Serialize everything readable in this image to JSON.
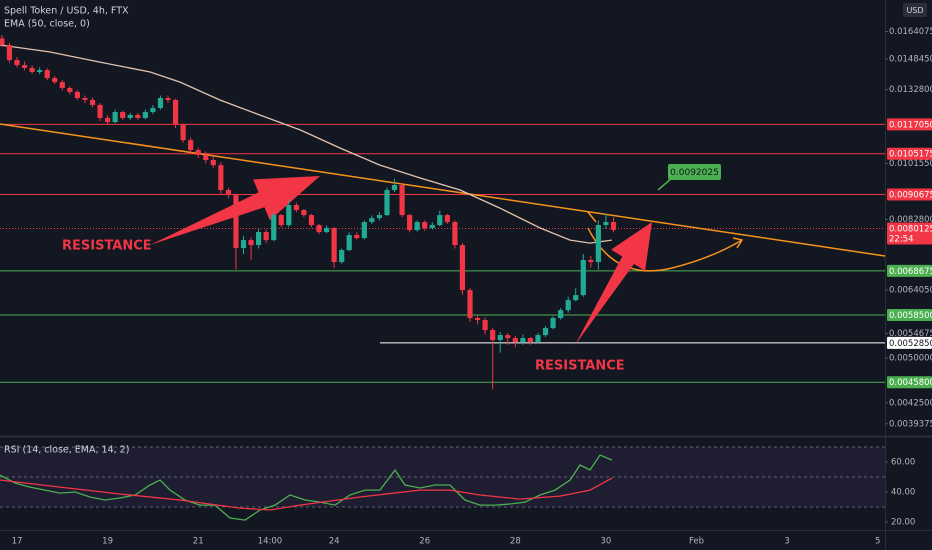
{
  "header": {
    "symbol": "Spell Token / USD, 4h, FTX",
    "ema_label": "EMA (50, close, 0)",
    "currency": "USD"
  },
  "chart_data": [
    {
      "type": "candlestick",
      "up_color": "#22ab94",
      "down_color": "#f23645",
      "log_scale": true,
      "xlim": [
        16.625,
        36.16
      ],
      "ylim": [
        0.00378,
        0.0184
      ],
      "xticks": [
        17,
        19,
        21,
        {
          "value": 22.583,
          "label": "14:00"
        },
        24,
        26,
        28,
        30,
        {
          "value": 32,
          "label": "Feb"
        },
        {
          "value": 34,
          "label": "3"
        },
        {
          "value": 36,
          "label": "5"
        }
      ],
      "yticks": [
        0.0164075,
        {
          "value": 0.014845,
          "label": "0.0148450"
        },
        {
          "value": 0.01328,
          "label": "0.0132800"
        },
        {
          "value": 0.010155,
          "label": "0.0101550"
        },
        {
          "value": 0.00828,
          "label": "0.0082800"
        },
        {
          "value": 0.006405,
          "label": "0.0064050"
        },
        0.0054675,
        {
          "value": 0.005,
          "label": "0.0050000"
        },
        {
          "value": 0.00425,
          "label": "0.0042500"
        },
        0.0039375
      ],
      "levels": [
        {
          "value": 0.011705,
          "label": "0.0117050",
          "color": "#f23645"
        },
        {
          "value": 0.0105175,
          "label": "0.0105175",
          "color": "#f23645"
        },
        {
          "value": 0.0090675,
          "label": "0.0090675",
          "color": "#f23645"
        },
        {
          "value": 0.0068675,
          "label": "0.0068675",
          "color": "#4caf50"
        },
        {
          "value": 0.00585,
          "label": "0.0058500",
          "color": "#4caf50"
        },
        {
          "value": 0.005285,
          "label": "0.0052850",
          "color": "#ffffff"
        },
        {
          "value": 0.00458,
          "label": "0.0045800",
          "color": "#4caf50"
        }
      ],
      "current": {
        "value": 0.0080125,
        "label": "0.0080125",
        "countdown": "22:54",
        "color": "#f23645"
      },
      "annotations": [
        "RESISTANCE",
        "RESISTANCE"
      ],
      "callout": {
        "label": "0.0092025",
        "color": "#4caf50"
      },
      "x": [
        16.667,
        16.833,
        17,
        17.167,
        17.333,
        17.5,
        17.667,
        17.833,
        18,
        18.167,
        18.333,
        18.5,
        18.667,
        18.833,
        19,
        19.167,
        19.333,
        19.5,
        19.667,
        19.833,
        20,
        20.167,
        20.333,
        20.5,
        20.667,
        20.833,
        21,
        21.167,
        21.333,
        21.5,
        21.667,
        21.833,
        22,
        22.167,
        22.333,
        22.5,
        22.667,
        22.833,
        23,
        23.167,
        23.333,
        23.5,
        23.667,
        23.833,
        24,
        24.167,
        24.333,
        24.5,
        24.667,
        24.833,
        25,
        25.167,
        25.333,
        25.5,
        25.667,
        25.833,
        26,
        26.167,
        26.333,
        26.5,
        26.667,
        26.833,
        27,
        27.167,
        27.333,
        27.5,
        27.667,
        27.833,
        28,
        28.167,
        28.333,
        28.5,
        28.667,
        28.833,
        29,
        29.167,
        29.333,
        29.5,
        29.667,
        29.833,
        30,
        30.167
      ],
      "open": [
        0.016,
        0.01562,
        0.01479,
        0.01452,
        0.01437,
        0.01416,
        0.01426,
        0.01385,
        0.01365,
        0.01336,
        0.01317,
        0.01288,
        0.01279,
        0.01256,
        0.01198,
        0.0118,
        0.01224,
        0.01198,
        0.01211,
        0.01198,
        0.01224,
        0.01242,
        0.01288,
        0.01279,
        0.01168,
        0.01105,
        0.01066,
        0.01047,
        0.01028,
        0.01009,
        0.009217,
        0.00905,
        0.007463,
        0.007682,
        0.007544,
        0.00791,
        0.007682,
        0.008414,
        0.008114,
        0.008727,
        0.008569,
        0.008414,
        0.008114,
        0.00791,
        0.008026,
        0.007091,
        0.007408,
        0.007824,
        0.007739,
        0.008203,
        0.008322,
        0.008414,
        0.009217,
        0.009386,
        0.008414,
        0.007967,
        0.008203,
        0.008026,
        0.008114,
        0.008414,
        0.008203,
        0.007544,
        0.006405,
        0.005785,
        0.005743,
        0.005537,
        0.00534,
        0.005437,
        0.005378,
        0.005301,
        0.005378,
        0.005301,
        0.005437,
        0.005577,
        0.005785,
        0.005954,
        0.006175,
        0.006289,
        0.007145,
        0.007091,
        0.008114,
        0.008203
      ],
      "high": [
        0.0162,
        0.01575,
        0.01495,
        0.0147,
        0.0145,
        0.0144,
        0.01435,
        0.01395,
        0.01375,
        0.01345,
        0.01325,
        0.013,
        0.0129,
        0.01265,
        0.0121,
        0.01235,
        0.0123,
        0.0122,
        0.0122,
        0.01235,
        0.01255,
        0.013,
        0.013,
        0.01285,
        0.01175,
        0.01115,
        0.01075,
        0.0106,
        0.0104,
        0.0102,
        0.0093,
        0.0091,
        0.0078,
        0.00775,
        0.008,
        0.00798,
        0.0085,
        0.00845,
        0.0089,
        0.0088,
        0.0086,
        0.00845,
        0.00815,
        0.0081,
        0.00805,
        0.00745,
        0.0079,
        0.0079,
        0.00825,
        0.0084,
        0.0085,
        0.0093,
        0.0096,
        0.00945,
        0.00845,
        0.00825,
        0.00825,
        0.0082,
        0.00855,
        0.00845,
        0.00825,
        0.0076,
        0.00645,
        0.00585,
        0.0058,
        0.00558,
        0.0055,
        0.00548,
        0.00542,
        0.00545,
        0.0054,
        0.00548,
        0.00562,
        0.00582,
        0.006,
        0.00625,
        0.00645,
        0.0073,
        0.00725,
        0.00825,
        0.00845,
        0.00835
      ],
      "low": [
        0.0155,
        0.01465,
        0.0144,
        0.01425,
        0.01405,
        0.01405,
        0.01375,
        0.01355,
        0.01325,
        0.01305,
        0.0128,
        0.01265,
        0.01245,
        0.01185,
        0.0117,
        0.01175,
        0.0119,
        0.0119,
        0.0119,
        0.01192,
        0.01215,
        0.01235,
        0.01265,
        0.01155,
        0.01095,
        0.01055,
        0.01035,
        0.01015,
        0.01,
        0.0091,
        0.00895,
        0.0069,
        0.0073,
        0.00715,
        0.00745,
        0.0076,
        0.00765,
        0.00805,
        0.00805,
        0.0085,
        0.00835,
        0.00805,
        0.00785,
        0.00788,
        0.00695,
        0.00705,
        0.00738,
        0.0077,
        0.0077,
        0.00815,
        0.00825,
        0.00838,
        0.00915,
        0.00835,
        0.0079,
        0.00792,
        0.00795,
        0.00798,
        0.00808,
        0.00815,
        0.00745,
        0.0063,
        0.0057,
        0.00565,
        0.00545,
        0.00446,
        0.0051,
        0.00525,
        0.0052,
        0.00525,
        0.00525,
        0.00528,
        0.0054,
        0.00555,
        0.00575,
        0.0059,
        0.00615,
        0.00625,
        0.00695,
        0.0069,
        0.008,
        0.0079
      ],
      "close": [
        0.01562,
        0.01479,
        0.01452,
        0.01437,
        0.01416,
        0.01426,
        0.01385,
        0.01365,
        0.01336,
        0.01317,
        0.01288,
        0.01279,
        0.01256,
        0.01198,
        0.0118,
        0.01224,
        0.01198,
        0.01211,
        0.01198,
        0.01224,
        0.01242,
        0.01288,
        0.01279,
        0.01168,
        0.01105,
        0.01066,
        0.01047,
        0.01028,
        0.01009,
        0.009217,
        0.00905,
        0.007463,
        0.007682,
        0.007544,
        0.00791,
        0.007682,
        0.008414,
        0.008114,
        0.008727,
        0.008569,
        0.008414,
        0.008114,
        0.00791,
        0.008026,
        0.007091,
        0.007408,
        0.007824,
        0.007739,
        0.008203,
        0.008322,
        0.008414,
        0.009217,
        0.009386,
        0.008414,
        0.007967,
        0.008203,
        0.008026,
        0.008114,
        0.008414,
        0.008203,
        0.007544,
        0.006405,
        0.005785,
        0.005743,
        0.005537,
        0.00534,
        0.005437,
        0.005378,
        0.005301,
        0.005378,
        0.005301,
        0.005437,
        0.005577,
        0.005785,
        0.005954,
        0.006175,
        0.006289,
        0.007145,
        0.007091,
        0.008114,
        0.008203,
        0.007967
      ],
      "ema": {
        "color": "#e0c3b0",
        "x": [
          16.625,
          17.73,
          18.83,
          19.94,
          20.6,
          21.48,
          22.36,
          23.25,
          24.13,
          25.01,
          25.9,
          26.78,
          27.66,
          28.55,
          29.21,
          29.65,
          30.13
        ],
        "values": [
          0.01562,
          0.01523,
          0.01468,
          0.01416,
          0.01365,
          0.01279,
          0.01211,
          0.01147,
          0.01074,
          0.01009,
          0.009627,
          0.009217,
          0.008631,
          0.008026,
          0.007682,
          0.007599,
          0.007682
        ]
      }
    },
    {
      "type": "line",
      "title": "RSI (14, close, EMA, 14, 2)",
      "xlim": [
        16.625,
        36.16
      ],
      "ylim": [
        14.67,
        76
      ],
      "yticks": [
        {
          "value": 60,
          "label": "60.00"
        },
        {
          "value": 40,
          "label": "40.00"
        },
        {
          "value": 20,
          "label": "20.00"
        }
      ],
      "levels": [
        70,
        50,
        30
      ],
      "series": [
        {
          "color": "#4caf50",
          "x": [
            16.625,
            16.956,
            17.287,
            17.618,
            17.949,
            18.28,
            18.611,
            18.943,
            19.274,
            19.605,
            19.936,
            20.157,
            20.377,
            20.709,
            21.04,
            21.371,
            21.702,
            22.033,
            22.364,
            22.695,
            23.026,
            23.358,
            23.689,
            24.02,
            24.351,
            24.682,
            25.013,
            25.344,
            25.565,
            25.896,
            26.227,
            26.558,
            26.89,
            27.221,
            27.552,
            27.883,
            28.214,
            28.545,
            28.876,
            29.208,
            29.428,
            29.649,
            29.87,
            30.135
          ],
          "values": [
            51.3,
            46,
            43.3,
            41.3,
            39.3,
            40,
            36.7,
            34.7,
            36,
            38,
            44.7,
            48,
            41.3,
            34.7,
            31.3,
            31.3,
            22.7,
            21.3,
            28,
            31.3,
            38,
            34.7,
            33.3,
            31.3,
            38,
            41.3,
            41.3,
            54.7,
            44.7,
            42.7,
            44.7,
            44.7,
            34.7,
            31.3,
            31.3,
            32,
            33.3,
            38,
            41.3,
            48,
            58,
            54.7,
            64.7,
            61.3
          ]
        },
        {
          "color": "#f23645",
          "x": [
            16.625,
            17.949,
            19.274,
            20.598,
            21.923,
            22.585,
            23.247,
            24.572,
            25.896,
            26.558,
            27.221,
            28.104,
            28.987,
            29.649,
            30.135
          ],
          "values": [
            48,
            43.3,
            38.7,
            34.7,
            29.3,
            28,
            31.3,
            36.7,
            41.3,
            41.3,
            38,
            35.3,
            37.3,
            41.3,
            49.3
          ]
        }
      ]
    }
  ]
}
